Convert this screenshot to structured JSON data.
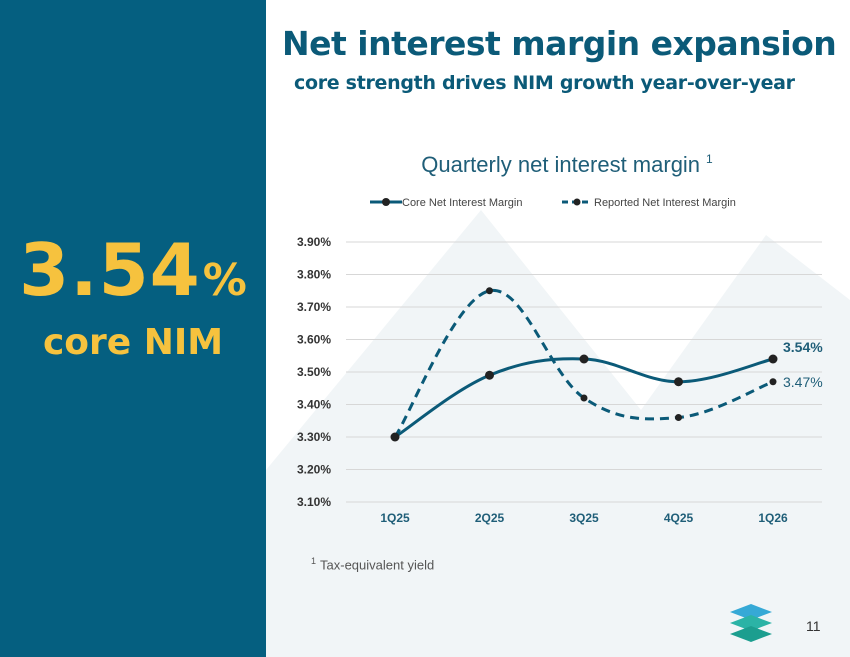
{
  "header": {
    "title": "Net interest margin expansion",
    "subtitle": "core strength drives NIM growth year-over-year"
  },
  "highlight": {
    "value": "3.54",
    "unit": "%",
    "label": "core NIM"
  },
  "chart_data": {
    "type": "line",
    "title": "Quarterly net interest margin",
    "title_superscript": "1",
    "categories": [
      "1Q25",
      "2Q25",
      "3Q25",
      "4Q25",
      "1Q26"
    ],
    "series": [
      {
        "name": "Core Net Interest Margin",
        "style": "solid",
        "values": [
          3.3,
          3.49,
          3.54,
          3.47,
          3.54
        ]
      },
      {
        "name": "Reported Net Interest Margin",
        "style": "dashed",
        "values": [
          3.3,
          3.75,
          3.42,
          3.36,
          3.47
        ]
      }
    ],
    "yticks": [
      "3.10%",
      "3.20%",
      "3.30%",
      "3.40%",
      "3.50%",
      "3.60%",
      "3.70%",
      "3.80%",
      "3.90%"
    ],
    "ylim": [
      3.1,
      3.9
    ],
    "end_labels": {
      "core": "3.54%",
      "reported": "3.47%"
    },
    "legend_position": "top",
    "grid": true
  },
  "footnote": {
    "marker": "1",
    "text": "Tax-equivalent yield"
  },
  "page": {
    "number": "11"
  },
  "colors": {
    "panel": "#055f80",
    "accent": "#f6c23e",
    "series": "#0b5a78",
    "grid": "#d7d7d7"
  }
}
